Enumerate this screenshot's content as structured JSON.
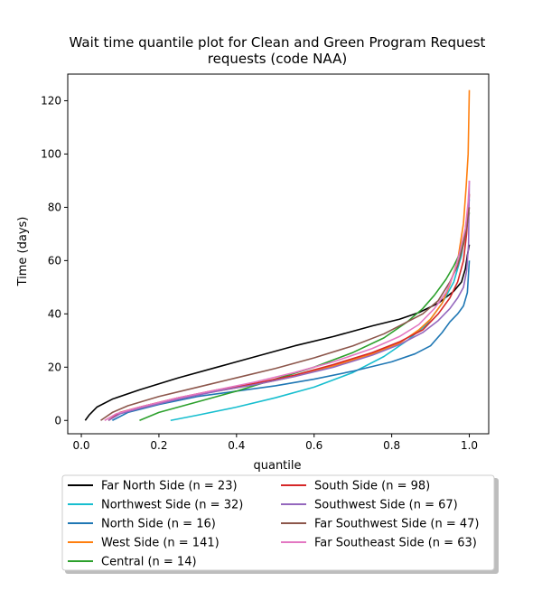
{
  "chart_data": {
    "type": "line",
    "title_line1": "Wait time quantile plot for Clean and Green Program Request",
    "title_line2": "requests (code NAA)",
    "xlabel": "quantile",
    "ylabel": "Time (days)",
    "xlim": [
      -0.035,
      1.05
    ],
    "ylim": [
      -5,
      130
    ],
    "x_ticks": [
      0.0,
      0.2,
      0.4,
      0.6,
      0.8,
      1.0
    ],
    "x_tick_labels": [
      "0.0",
      "0.2",
      "0.4",
      "0.6",
      "0.8",
      "1.0"
    ],
    "y_ticks": [
      0,
      20,
      40,
      60,
      80,
      100,
      120
    ],
    "y_tick_labels": [
      "0",
      "20",
      "40",
      "60",
      "80",
      "100",
      "120"
    ],
    "grid": false,
    "legend_placement": "below plot, two columns",
    "series": [
      {
        "name": "Far North Side (n = 23)",
        "color": "#000000",
        "points": [
          [
            0.01,
            0
          ],
          [
            0.02,
            2
          ],
          [
            0.04,
            5
          ],
          [
            0.08,
            8
          ],
          [
            0.15,
            11.5
          ],
          [
            0.25,
            16
          ],
          [
            0.35,
            20
          ],
          [
            0.45,
            24
          ],
          [
            0.55,
            28
          ],
          [
            0.65,
            31.5
          ],
          [
            0.75,
            35.5
          ],
          [
            0.82,
            38
          ],
          [
            0.87,
            40.5
          ],
          [
            0.92,
            44
          ],
          [
            0.96,
            48.5
          ],
          [
            0.98,
            52
          ],
          [
            0.99,
            57
          ],
          [
            0.995,
            62
          ],
          [
            1.0,
            66
          ]
        ]
      },
      {
        "name": "Northwest Side (n = 32)",
        "color": "#17becf",
        "points": [
          [
            0.23,
            0
          ],
          [
            0.3,
            2
          ],
          [
            0.4,
            5
          ],
          [
            0.5,
            8.5
          ],
          [
            0.6,
            12.5
          ],
          [
            0.7,
            18
          ],
          [
            0.78,
            24
          ],
          [
            0.84,
            30
          ],
          [
            0.89,
            36
          ],
          [
            0.93,
            44
          ],
          [
            0.96,
            52
          ],
          [
            0.98,
            62
          ],
          [
            0.99,
            72
          ],
          [
            1.0,
            83
          ]
        ]
      },
      {
        "name": "North Side (n = 16)",
        "color": "#1f77b4",
        "points": [
          [
            0.08,
            0
          ],
          [
            0.12,
            3
          ],
          [
            0.2,
            6
          ],
          [
            0.3,
            9
          ],
          [
            0.4,
            11
          ],
          [
            0.5,
            13
          ],
          [
            0.6,
            15.5
          ],
          [
            0.7,
            18.5
          ],
          [
            0.8,
            22
          ],
          [
            0.86,
            25
          ],
          [
            0.9,
            28
          ],
          [
            0.93,
            33
          ],
          [
            0.95,
            37
          ],
          [
            0.97,
            40
          ],
          [
            0.985,
            43
          ],
          [
            0.995,
            48
          ],
          [
            1.0,
            60
          ]
        ]
      },
      {
        "name": "West Side (n = 141)",
        "color": "#ff7f0e",
        "points": [
          [
            0.07,
            0
          ],
          [
            0.1,
            3
          ],
          [
            0.15,
            5
          ],
          [
            0.25,
            8.5
          ],
          [
            0.35,
            11
          ],
          [
            0.45,
            13.5
          ],
          [
            0.55,
            16.5
          ],
          [
            0.65,
            20.5
          ],
          [
            0.75,
            25
          ],
          [
            0.82,
            29
          ],
          [
            0.87,
            34
          ],
          [
            0.9,
            38
          ],
          [
            0.93,
            44
          ],
          [
            0.95,
            51
          ],
          [
            0.97,
            60
          ],
          [
            0.985,
            74
          ],
          [
            0.992,
            88
          ],
          [
            0.997,
            100
          ],
          [
            1.0,
            124
          ]
        ]
      },
      {
        "name": "Central (n = 14)",
        "color": "#2ca02c",
        "points": [
          [
            0.15,
            0
          ],
          [
            0.2,
            3
          ],
          [
            0.3,
            7
          ],
          [
            0.4,
            11
          ],
          [
            0.5,
            15.5
          ],
          [
            0.6,
            20
          ],
          [
            0.7,
            25.5
          ],
          [
            0.78,
            31
          ],
          [
            0.84,
            37
          ],
          [
            0.88,
            42
          ],
          [
            0.91,
            47
          ],
          [
            0.94,
            53
          ],
          [
            0.96,
            58
          ],
          [
            0.98,
            64
          ],
          [
            0.99,
            70
          ],
          [
            1.0,
            78
          ]
        ]
      },
      {
        "name": "South Side (n = 98)",
        "color": "#d62728",
        "points": [
          [
            0.07,
            0
          ],
          [
            0.1,
            3
          ],
          [
            0.15,
            5
          ],
          [
            0.25,
            8.5
          ],
          [
            0.35,
            11.5
          ],
          [
            0.45,
            14
          ],
          [
            0.55,
            17
          ],
          [
            0.65,
            21
          ],
          [
            0.75,
            25.5
          ],
          [
            0.82,
            29.5
          ],
          [
            0.88,
            34
          ],
          [
            0.92,
            40
          ],
          [
            0.95,
            46
          ],
          [
            0.97,
            52
          ],
          [
            0.985,
            60
          ],
          [
            0.993,
            70
          ],
          [
            0.998,
            80
          ],
          [
            1.0,
            85
          ]
        ]
      },
      {
        "name": "Southwest Side (n = 67)",
        "color": "#9467bd",
        "points": [
          [
            0.07,
            0
          ],
          [
            0.1,
            2.5
          ],
          [
            0.15,
            4.5
          ],
          [
            0.25,
            8
          ],
          [
            0.35,
            11
          ],
          [
            0.45,
            13.5
          ],
          [
            0.55,
            16.5
          ],
          [
            0.65,
            20
          ],
          [
            0.75,
            24.5
          ],
          [
            0.82,
            28.5
          ],
          [
            0.88,
            33
          ],
          [
            0.92,
            37.5
          ],
          [
            0.95,
            42
          ],
          [
            0.97,
            46
          ],
          [
            0.985,
            50
          ],
          [
            0.993,
            56
          ],
          [
            0.998,
            66
          ],
          [
            1.0,
            90
          ]
        ]
      },
      {
        "name": "Far Southwest Side (n = 47)",
        "color": "#8c564b",
        "points": [
          [
            0.05,
            0
          ],
          [
            0.08,
            3
          ],
          [
            0.12,
            5.5
          ],
          [
            0.2,
            9
          ],
          [
            0.3,
            12.5
          ],
          [
            0.4,
            16
          ],
          [
            0.5,
            19.5
          ],
          [
            0.6,
            23.5
          ],
          [
            0.7,
            28
          ],
          [
            0.78,
            32.5
          ],
          [
            0.84,
            37
          ],
          [
            0.88,
            40
          ],
          [
            0.92,
            45
          ],
          [
            0.95,
            52
          ],
          [
            0.97,
            58
          ],
          [
            0.985,
            66
          ],
          [
            0.993,
            72
          ],
          [
            1.0,
            80
          ]
        ]
      },
      {
        "name": "Far Southeast Side (n = 63)",
        "color": "#e377c2",
        "points": [
          [
            0.06,
            0
          ],
          [
            0.09,
            2.5
          ],
          [
            0.15,
            5
          ],
          [
            0.25,
            8.5
          ],
          [
            0.35,
            11.5
          ],
          [
            0.45,
            14.5
          ],
          [
            0.55,
            18
          ],
          [
            0.65,
            22
          ],
          [
            0.75,
            27
          ],
          [
            0.82,
            31.5
          ],
          [
            0.87,
            36
          ],
          [
            0.91,
            42
          ],
          [
            0.94,
            48
          ],
          [
            0.96,
            55
          ],
          [
            0.975,
            63
          ],
          [
            0.99,
            72
          ],
          [
            0.997,
            82
          ],
          [
            1.0,
            90
          ]
        ]
      }
    ]
  }
}
